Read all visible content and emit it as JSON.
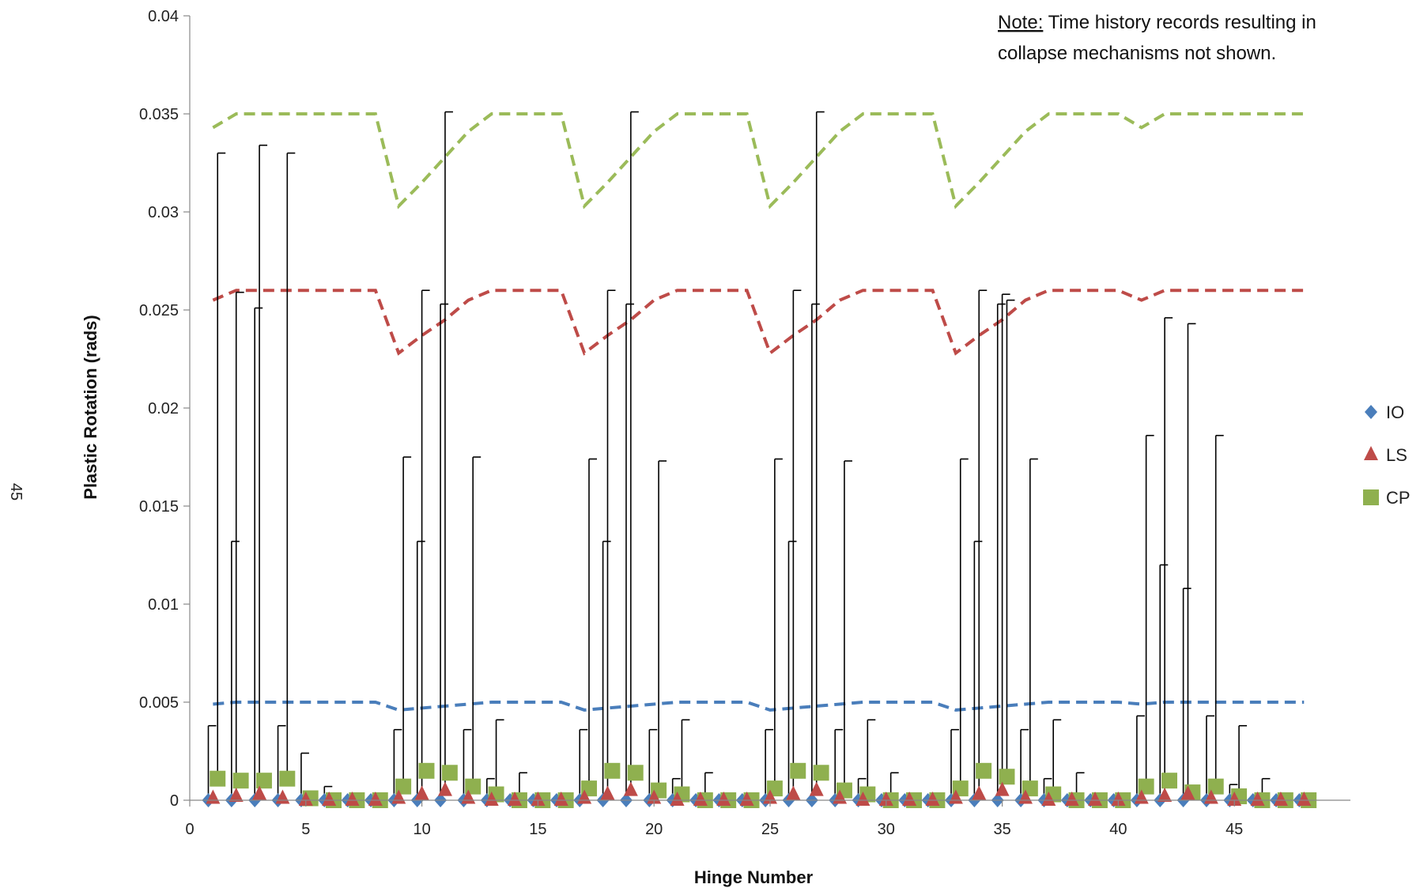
{
  "page_number": "45",
  "chart_data": {
    "type": "scatter",
    "title": "",
    "xlabel": "Hinge Number",
    "ylabel": "Plastic Rotation (rads)",
    "xlim": [
      0,
      50
    ],
    "ylim": [
      0,
      0.04
    ],
    "x_ticks": [
      "0",
      "5",
      "10",
      "15",
      "20",
      "25",
      "30",
      "35",
      "40",
      "45"
    ],
    "y_ticks": [
      "0",
      "0.005",
      "0.01",
      "0.015",
      "0.02",
      "0.025",
      "0.03",
      "0.035",
      "0.04"
    ],
    "grid": false,
    "legend_position": "right",
    "note": {
      "prefix": "Note:",
      "line1": " Time history records resulting in",
      "line2": "collapse mechanisms not shown."
    },
    "series": [
      {
        "name": "IO",
        "marker": "diamond",
        "color": "#4a7ebb",
        "offset": -0.2,
        "x": [
          1,
          2,
          3,
          4,
          5,
          6,
          7,
          8,
          9,
          10,
          11,
          12,
          13,
          14,
          15,
          16,
          17,
          18,
          19,
          20,
          21,
          22,
          23,
          24,
          25,
          26,
          27,
          28,
          29,
          30,
          31,
          32,
          33,
          34,
          35,
          36,
          37,
          38,
          39,
          40,
          41,
          42,
          43,
          44,
          45,
          46,
          47,
          48
        ],
        "values": [
          0,
          0,
          0,
          0,
          0,
          0,
          0,
          0,
          0,
          0,
          0,
          0,
          0,
          0,
          0,
          0,
          0,
          0,
          0,
          0,
          0,
          0,
          0,
          0,
          0,
          0,
          0,
          0,
          0,
          0,
          0,
          0,
          0,
          0,
          0,
          0,
          0,
          0,
          0,
          0,
          0,
          0,
          0,
          0,
          0,
          0,
          0,
          0
        ],
        "error_plus": [
          0.0038,
          0.0132,
          0.0251,
          0.0038,
          0.0024,
          0.0007,
          0,
          0,
          0.0036,
          0.0132,
          0.0253,
          0.0036,
          0.0011,
          0.0002,
          0,
          0,
          0.0036,
          0.0132,
          0.0253,
          0.0036,
          0.0011,
          0.0002,
          0,
          0,
          0.0036,
          0.0132,
          0.0253,
          0.0036,
          0.0011,
          0.0002,
          0,
          0,
          0.0036,
          0.0132,
          0.0253,
          0.0036,
          0.0011,
          0.0002,
          0,
          0,
          0.0043,
          0.012,
          0.0108,
          0.0043,
          0.0008,
          0.0002,
          0,
          0
        ]
      },
      {
        "name": "LS",
        "marker": "triangle",
        "color": "#be4b48",
        "offset": 0,
        "x": [
          1,
          2,
          3,
          4,
          5,
          6,
          7,
          8,
          9,
          10,
          11,
          12,
          13,
          14,
          15,
          16,
          17,
          18,
          19,
          20,
          21,
          22,
          23,
          24,
          25,
          26,
          27,
          28,
          29,
          30,
          31,
          32,
          33,
          34,
          35,
          36,
          37,
          38,
          39,
          40,
          41,
          42,
          43,
          44,
          45,
          46,
          47,
          48
        ],
        "values": [
          0.0001,
          0.0002,
          0.0003,
          0.0001,
          0,
          0,
          0,
          0,
          0.0001,
          0.0003,
          0.0005,
          0.0001,
          0,
          0,
          0,
          0,
          0.0001,
          0.0003,
          0.0005,
          0.0001,
          0,
          0,
          0,
          0,
          0.0001,
          0.0003,
          0.0005,
          0.0001,
          0,
          0,
          0,
          0,
          0.0001,
          0.0003,
          0.0005,
          0.0001,
          0,
          0,
          0,
          0,
          0.0001,
          0.0002,
          0.0003,
          0.0001,
          0,
          0,
          0,
          0
        ],
        "error_plus": [
          0,
          0.0257,
          0.0331,
          0,
          0,
          0,
          0,
          0,
          0,
          0.0257,
          0.0346,
          0,
          0,
          0,
          0,
          0,
          0,
          0.0257,
          0.0346,
          0,
          0,
          0,
          0,
          0,
          0,
          0.0257,
          0.0346,
          0,
          0,
          0,
          0,
          0,
          0,
          0.0257,
          0.0253,
          0,
          0,
          0,
          0,
          0,
          0,
          0.0244,
          0.024,
          0,
          0,
          0,
          0,
          0
        ]
      },
      {
        "name": "CP",
        "marker": "square",
        "color": "#8fb04f",
        "offset": 0.2,
        "x": [
          1,
          2,
          3,
          4,
          5,
          6,
          7,
          8,
          9,
          10,
          11,
          12,
          13,
          14,
          15,
          16,
          17,
          18,
          19,
          20,
          21,
          22,
          23,
          24,
          25,
          26,
          27,
          28,
          29,
          30,
          31,
          32,
          33,
          34,
          35,
          36,
          37,
          38,
          39,
          40,
          41,
          42,
          43,
          44,
          45,
          46,
          47,
          48
        ],
        "values": [
          0.0011,
          0.001,
          0.001,
          0.0011,
          0.0001,
          0,
          0,
          0,
          0.0007,
          0.0015,
          0.0014,
          0.0007,
          0.0003,
          0,
          0,
          0,
          0.0006,
          0.0015,
          0.0014,
          0.0005,
          0.0003,
          0,
          0,
          0,
          0.0006,
          0.0015,
          0.0014,
          0.0005,
          0.0003,
          0,
          0,
          0,
          0.0006,
          0.0015,
          0.0012,
          0.0006,
          0.0003,
          0,
          0,
          0,
          0.0007,
          0.001,
          0.0004,
          0.0007,
          0.0002,
          0,
          0,
          0
        ],
        "error_plus": [
          0.0319,
          0,
          0,
          0.0319,
          0,
          0,
          0,
          0,
          0.0168,
          0,
          0,
          0.0168,
          0.0038,
          0.0014,
          0,
          0,
          0.0168,
          0,
          0,
          0.0168,
          0.0038,
          0.0014,
          0,
          0,
          0.0168,
          0,
          0,
          0.0168,
          0.0038,
          0.0014,
          0,
          0,
          0.0168,
          0,
          0.0243,
          0.0168,
          0.0038,
          0.0014,
          0,
          0,
          0.0179,
          0,
          0,
          0.0179,
          0.0036,
          0.0011,
          0,
          0
        ]
      }
    ],
    "limit_lines": [
      {
        "color": "#4a7ebb",
        "x": [
          1,
          2,
          3,
          4,
          5,
          6,
          7,
          8,
          9,
          10,
          11,
          12,
          13,
          14,
          15,
          16,
          17,
          18,
          19,
          20,
          21,
          22,
          23,
          24,
          25,
          26,
          27,
          28,
          29,
          30,
          31,
          32,
          33,
          34,
          35,
          36,
          37,
          38,
          39,
          40,
          41,
          42,
          43,
          44,
          45,
          46,
          47,
          48
        ],
        "values": [
          0.0049,
          0.005,
          0.005,
          0.005,
          0.005,
          0.005,
          0.005,
          0.005,
          0.0046,
          0.0047,
          0.0048,
          0.0049,
          0.005,
          0.005,
          0.005,
          0.005,
          0.0046,
          0.0047,
          0.0048,
          0.0049,
          0.005,
          0.005,
          0.005,
          0.005,
          0.0046,
          0.0047,
          0.0048,
          0.0049,
          0.005,
          0.005,
          0.005,
          0.005,
          0.0046,
          0.0047,
          0.0048,
          0.0049,
          0.005,
          0.005,
          0.005,
          0.005,
          0.0049,
          0.005,
          0.005,
          0.005,
          0.005,
          0.005,
          0.005,
          0.005
        ]
      },
      {
        "color": "#be4b48",
        "x": [
          1,
          2,
          3,
          4,
          5,
          6,
          7,
          8,
          9,
          10,
          11,
          12,
          13,
          14,
          15,
          16,
          17,
          18,
          19,
          20,
          21,
          22,
          23,
          24,
          25,
          26,
          27,
          28,
          29,
          30,
          31,
          32,
          33,
          34,
          35,
          36,
          37,
          38,
          39,
          40,
          41,
          42,
          43,
          44,
          45,
          46,
          47,
          48
        ],
        "values": [
          0.0255,
          0.026,
          0.026,
          0.026,
          0.026,
          0.026,
          0.026,
          0.026,
          0.0228,
          0.0237,
          0.0245,
          0.0255,
          0.026,
          0.026,
          0.026,
          0.026,
          0.0228,
          0.0237,
          0.0245,
          0.0255,
          0.026,
          0.026,
          0.026,
          0.026,
          0.0228,
          0.0237,
          0.0245,
          0.0255,
          0.026,
          0.026,
          0.026,
          0.026,
          0.0228,
          0.0237,
          0.0245,
          0.0255,
          0.026,
          0.026,
          0.026,
          0.026,
          0.0255,
          0.026,
          0.026,
          0.026,
          0.026,
          0.026,
          0.026,
          0.026
        ]
      },
      {
        "color": "#9bbb59",
        "x": [
          1,
          2,
          3,
          4,
          5,
          6,
          7,
          8,
          9,
          10,
          11,
          12,
          13,
          14,
          15,
          16,
          17,
          18,
          19,
          20,
          21,
          22,
          23,
          24,
          25,
          26,
          27,
          28,
          29,
          30,
          31,
          32,
          33,
          34,
          35,
          36,
          37,
          38,
          39,
          40,
          41,
          42,
          43,
          44,
          45,
          46,
          47,
          48
        ],
        "values": [
          0.0343,
          0.035,
          0.035,
          0.035,
          0.035,
          0.035,
          0.035,
          0.035,
          0.0303,
          0.0315,
          0.0328,
          0.0341,
          0.035,
          0.035,
          0.035,
          0.035,
          0.0303,
          0.0315,
          0.0328,
          0.0341,
          0.035,
          0.035,
          0.035,
          0.035,
          0.0303,
          0.0315,
          0.0328,
          0.0341,
          0.035,
          0.035,
          0.035,
          0.035,
          0.0303,
          0.0315,
          0.0328,
          0.0341,
          0.035,
          0.035,
          0.035,
          0.035,
          0.0343,
          0.035,
          0.035,
          0.035,
          0.035,
          0.035,
          0.035,
          0.035
        ]
      }
    ]
  }
}
